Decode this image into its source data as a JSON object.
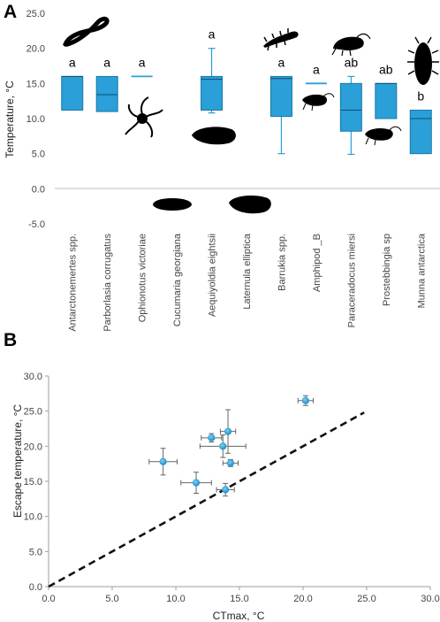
{
  "chart_data": [
    {
      "type": "box",
      "panel_label": "A",
      "ylabel": "Temperature, °C",
      "ylim": [
        -5.0,
        25.0
      ],
      "yticks": [
        "25.0",
        "20.0",
        "15.0",
        "10.0",
        "5.0",
        "0.0",
        "-5.0"
      ],
      "categories": [
        "Antarctonemertes spp.",
        "Parborlasia corrugatus",
        "Ophionotus victoriae",
        "Cucumaria georgiana",
        "Aequiyoldia eightsii",
        "Laternula elliptica",
        "Barrukia spp.",
        "Amphipod _B",
        "Paraceradocus miersi",
        "Prostebbingia sp",
        "Munna antarctica"
      ],
      "boxes": [
        {
          "q1": 11.2,
          "median": 16.0,
          "q3": 16.0,
          "lo": 11.2,
          "hi": 16.0,
          "letter": "a"
        },
        {
          "q1": 11.0,
          "median": 13.4,
          "q3": 16.0,
          "lo": 11.0,
          "hi": 16.0,
          "letter": "a"
        },
        {
          "q1": 16.0,
          "median": 16.0,
          "q3": 16.0,
          "lo": 16.0,
          "hi": 16.0,
          "letter": "a"
        },
        null,
        {
          "q1": 11.2,
          "median": 15.6,
          "q3": 16.0,
          "lo": 10.8,
          "hi": 20.0,
          "letter": "a"
        },
        null,
        {
          "q1": 10.3,
          "median": 15.7,
          "q3": 16.0,
          "lo": 5.0,
          "hi": 16.0,
          "letter": "a"
        },
        {
          "q1": 15.0,
          "median": 15.0,
          "q3": 15.0,
          "lo": 15.0,
          "hi": 15.0,
          "letter": "a"
        },
        {
          "q1": 8.2,
          "median": 11.2,
          "q3": 15.0,
          "lo": 4.9,
          "hi": 16.0,
          "letter": "ab"
        },
        {
          "q1": 10.0,
          "median": 15.0,
          "q3": 15.0,
          "lo": 10.0,
          "hi": 15.0,
          "letter": "ab"
        },
        {
          "q1": 5.0,
          "median": 10.0,
          "q3": 11.2,
          "lo": 5.0,
          "hi": 11.2,
          "letter": "b"
        }
      ],
      "box_color": "#2a9fd8",
      "grid": false
    },
    {
      "type": "scatter",
      "panel_label": "B",
      "xlabel": "CTmax, °C",
      "ylabel": "Escape temperature, °C",
      "xlim": [
        0.0,
        30.0
      ],
      "ylim": [
        0.0,
        30.0
      ],
      "xticks": [
        "0.0",
        "5.0",
        "10.0",
        "15.0",
        "20.0",
        "25.0",
        "30.0"
      ],
      "yticks": [
        "0.0",
        "5.0",
        "10.0",
        "15.0",
        "20.0",
        "25.0",
        "30.0"
      ],
      "points": [
        {
          "x": 20.2,
          "y": 26.5,
          "xerr": 0.6,
          "yerr": 0.7
        },
        {
          "x": 12.8,
          "y": 21.2,
          "xerr": 0.8,
          "yerr": 0.6
        },
        {
          "x": 14.1,
          "y": 22.1,
          "xerr": 0.6,
          "yerr": 3.1
        },
        {
          "x": 13.7,
          "y": 20.0,
          "xerr": 1.8,
          "yerr": 1.6
        },
        {
          "x": 14.3,
          "y": 17.6,
          "xerr": 0.6,
          "yerr": 0.5
        },
        {
          "x": 9.0,
          "y": 17.8,
          "xerr": 1.1,
          "yerr": 1.9
        },
        {
          "x": 11.6,
          "y": 14.8,
          "xerr": 1.2,
          "yerr": 1.5
        },
        {
          "x": 13.9,
          "y": 13.8,
          "xerr": 0.7,
          "yerr": 0.9
        }
      ],
      "reference_line": {
        "style": "dashed",
        "from": [
          0,
          0
        ],
        "to": [
          24.8,
          24.8
        ]
      },
      "point_color": "#2a9fd8",
      "grid": false
    }
  ]
}
